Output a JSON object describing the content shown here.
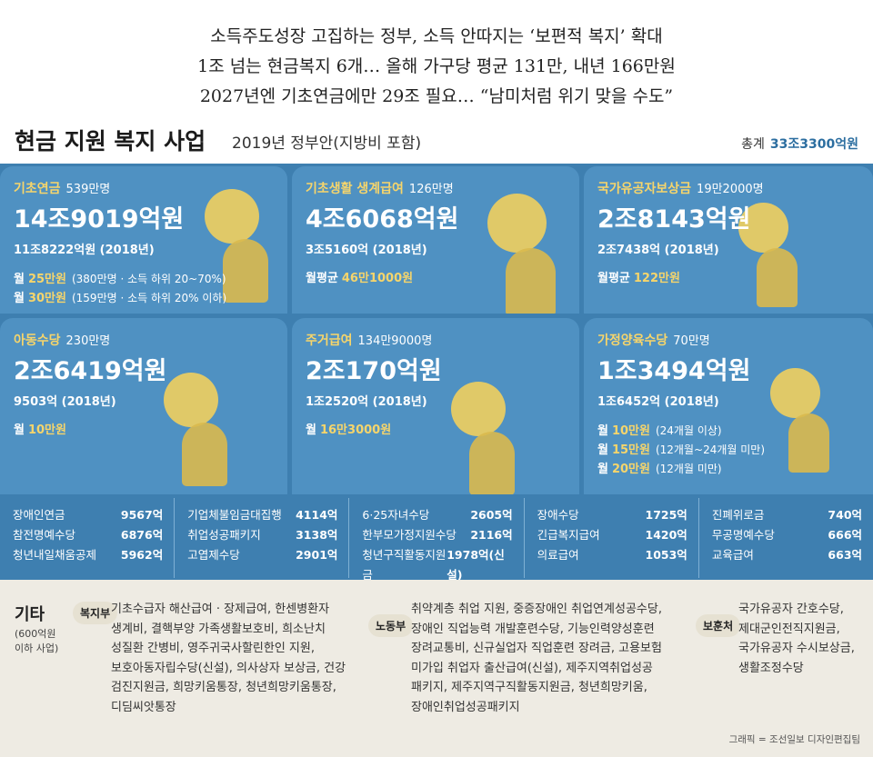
{
  "headlines": [
    "소득주도성장 고집하는 정부, 소득 안따지는 ‘보편적 복지’ 확대",
    "1조 넘는 현금복지 6개… 올해 가구당 평균 131만, 내년 166만원",
    "2027년엔 기초연금에만 29조 필요… “남미처럼 위기 맞을 수도”"
  ],
  "title": "현금 지원 복지 사업",
  "subtitle": "2019년 정부안(지방비 포함)",
  "total_label": "총계",
  "total": "33조3300억원",
  "cards": [
    {
      "name": "기초연금",
      "count": "539만명",
      "amount": "14조9019억원",
      "prev": "11조8222억원 (2018년)",
      "details": [
        {
          "prefix": "월",
          "value": "25만원",
          "note": "(380만명 · 소득 하위 20~70%)"
        },
        {
          "prefix": "월",
          "value": "30만원",
          "note": "(159만명 · 소득 하위 20% 이하)"
        }
      ]
    },
    {
      "name": "기초생활 생계급여",
      "count": "126만명",
      "amount": "4조6068억원",
      "prev": "3조5160억 (2018년)",
      "details": [
        {
          "prefix": "월평균",
          "value": "46만1000원"
        }
      ]
    },
    {
      "name": "국가유공자보상금",
      "count": "19만2000명",
      "amount": "2조8143억원",
      "prev": "2조7438억 (2018년)",
      "details": [
        {
          "prefix": "월평균",
          "value": "122만원"
        }
      ]
    },
    {
      "name": "아동수당",
      "count": "230만명",
      "amount": "2조6419억원",
      "prev": "9503억 (2018년)",
      "details": [
        {
          "prefix": "월",
          "value": "10만원"
        }
      ]
    },
    {
      "name": "주거급여",
      "count": "134만9000명",
      "amount": "2조170억원",
      "prev": "1조2520억 (2018년)",
      "details": [
        {
          "prefix": "월",
          "value": "16만3000원"
        }
      ]
    },
    {
      "name": "가정양육수당",
      "count": "70만명",
      "amount": "1조3494억원",
      "prev": "1조6452억 (2018년)",
      "details": [
        {
          "prefix": "월",
          "value": "10만원",
          "note": "(24개월 이상)"
        },
        {
          "prefix": "월",
          "value": "15만원",
          "note": "(12개월~24개월 미만)"
        },
        {
          "prefix": "월",
          "value": "20만원",
          "note": "(12개월 미만)"
        }
      ]
    }
  ],
  "small_programs": [
    [
      {
        "name": "장애인연금",
        "value": "9567억"
      },
      {
        "name": "참전명예수당",
        "value": "6876억"
      },
      {
        "name": "청년내일채움공제",
        "value": "5962억"
      }
    ],
    [
      {
        "name": "기업체불임금대집행",
        "value": "4114억"
      },
      {
        "name": "취업성공패키지",
        "value": "3138억"
      },
      {
        "name": "고엽제수당",
        "value": "2901억"
      }
    ],
    [
      {
        "name": "6·25자녀수당",
        "value": "2605억"
      },
      {
        "name": "한부모가정지원수당",
        "value": "2116억"
      },
      {
        "name": "청년구직활동지원금",
        "value": "1978억(신설)"
      }
    ],
    [
      {
        "name": "장애수당",
        "value": "1725억"
      },
      {
        "name": "긴급복지급여",
        "value": "1420억"
      },
      {
        "name": "의료급여",
        "value": "1053억"
      }
    ],
    [
      {
        "name": "진폐위로금",
        "value": "740억"
      },
      {
        "name": "무공명예수당",
        "value": "666억"
      },
      {
        "name": "교육급여",
        "value": "663억"
      }
    ]
  ],
  "other": {
    "label": "기타",
    "note": "(600억원 이하 사업)",
    "groups": [
      {
        "ministry": "복지부",
        "lines": [
          "기초수급자 해산급여 · 장제급여, 한센병환자",
          "생계비, 결핵부양 가족생활보호비, 희소난치",
          "성질환 간병비, 영주귀국사할린한인 지원,",
          "보호아동자립수당(신설), 의사상자 보상금, 건강",
          "검진지원금, 희망키움통장, 청년희망키움통장,",
          "디딤씨앗통장"
        ]
      },
      {
        "ministry": "노동부",
        "lines": [
          "취약계층 취업 지원, 중증장애인 취업연계성공수당,",
          "장애인 직업능력 개발훈련수당, 기능인력양성훈련",
          "장려교통비, 신규실업자 직업훈련 장려금, 고용보험",
          "미가입 취업자 출산급여(신설), 제주지역취업성공",
          "패키지, 제주지역구직활동지원금, 청년희망키움,",
          "장애인취업성공패키지"
        ]
      },
      {
        "ministry": "보훈처",
        "lines": [
          "국가유공자 간호수당,",
          "제대군인전직지원금,",
          "국가유공자 수시보상금,",
          "생활조정수당"
        ]
      }
    ]
  },
  "credit": "그래픽 = 조선일보 디자인편집팀"
}
